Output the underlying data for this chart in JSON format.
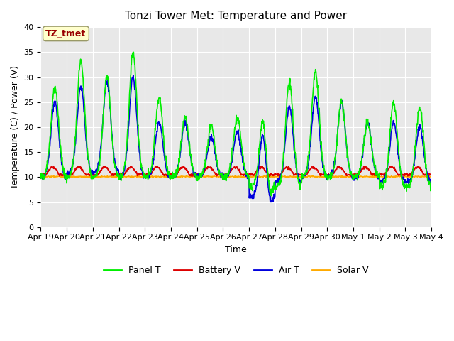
{
  "title": "Tonzi Tower Met: Temperature and Power",
  "xlabel": "Time",
  "ylabel": "Temperature (C) / Power (V)",
  "ylim": [
    0,
    40
  ],
  "yticks": [
    0,
    5,
    10,
    15,
    20,
    25,
    30,
    35,
    40
  ],
  "xtick_labels": [
    "Apr 19",
    "Apr 20",
    "Apr 21",
    "Apr 22",
    "Apr 23",
    "Apr 24",
    "Apr 25",
    "Apr 26",
    "Apr 27",
    "Apr 28",
    "Apr 29",
    "Apr 30",
    "May 1",
    "May 2",
    "May 3",
    "May 4"
  ],
  "annotation_text": "TZ_tmet",
  "annotation_color": "#990000",
  "annotation_bg": "#ffffcc",
  "annotation_edge": "#999966",
  "fig_bg": "#ffffff",
  "plot_bg": "#e8e8e8",
  "grid_color": "#ffffff",
  "colors": {
    "panel_t": "#00ee00",
    "battery_v": "#dd0000",
    "air_t": "#0000dd",
    "solar_v": "#ffaa00"
  },
  "legend_labels": [
    "Panel T",
    "Battery V",
    "Air T",
    "Solar V"
  ],
  "linewidth": 1.2
}
